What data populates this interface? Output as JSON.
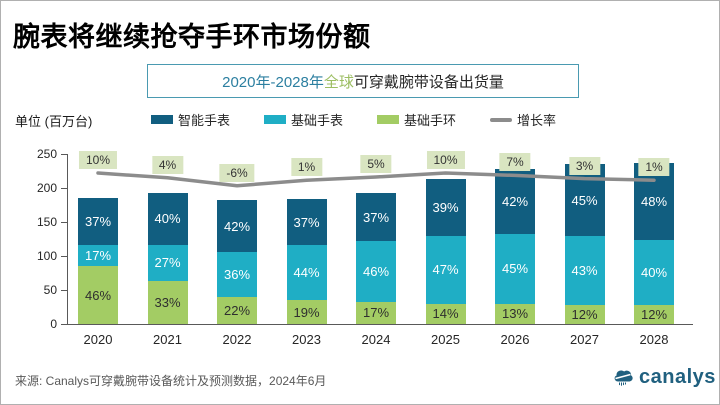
{
  "header": {
    "title": "腕表将继续抢夺手环市场份额",
    "subtitle_period": "2020年-2028年 ",
    "subtitle_scope": "全球",
    "subtitle_rest": "可穿戴腕带设备出货量"
  },
  "chart_meta": {
    "unit_label": "单位 (百万台)"
  },
  "legend": [
    {
      "label": "智能手表",
      "color": "#115e80",
      "swatch": "rect"
    },
    {
      "label": "基础手表",
      "color": "#1faec5",
      "swatch": "rect"
    },
    {
      "label": "基础手环",
      "color": "#a3cc64",
      "swatch": "rect"
    },
    {
      "label": "增长率",
      "color": "#8c8c8c",
      "swatch": "line"
    }
  ],
  "chart_data": {
    "type": "bar",
    "stacked": true,
    "title": "2020年-2028年全球可穿戴腕带设备出货量",
    "ylabel": "单位 (百万台)",
    "ylim": [
      0,
      250
    ],
    "yticks": [
      0,
      50,
      100,
      150,
      200,
      250
    ],
    "grid": false,
    "legend_position": "top",
    "categories": [
      "2020",
      "2021",
      "2022",
      "2023",
      "2024",
      "2025",
      "2026",
      "2027",
      "2028"
    ],
    "totals_millions_est": [
      185,
      193,
      182,
      184,
      193,
      213,
      228,
      235,
      237
    ],
    "series": [
      {
        "name": "智能手表",
        "color": "#115e80",
        "label_color": "#ffffff",
        "share_pct": [
          37,
          40,
          42,
          37,
          37,
          39,
          42,
          45,
          48
        ]
      },
      {
        "name": "基础手表",
        "color": "#1faec5",
        "label_color": "#ffffff",
        "share_pct": [
          17,
          27,
          36,
          44,
          46,
          47,
          45,
          43,
          40
        ]
      },
      {
        "name": "基础手环",
        "color": "#a3cc64",
        "label_color": "#2f2f2f",
        "share_pct": [
          46,
          33,
          22,
          19,
          17,
          14,
          13,
          12,
          12
        ]
      }
    ],
    "line_series": {
      "name": "增长率",
      "color": "#8c8c8c",
      "values_pct": [
        10,
        4,
        -6,
        1,
        5,
        10,
        7,
        3,
        1
      ],
      "label_bg": "#d9e5c1"
    }
  },
  "footer": {
    "source": "来源: Canalys可穿戴腕带设备统计及预测数据，2024年6月",
    "logo_text": "canalys"
  }
}
